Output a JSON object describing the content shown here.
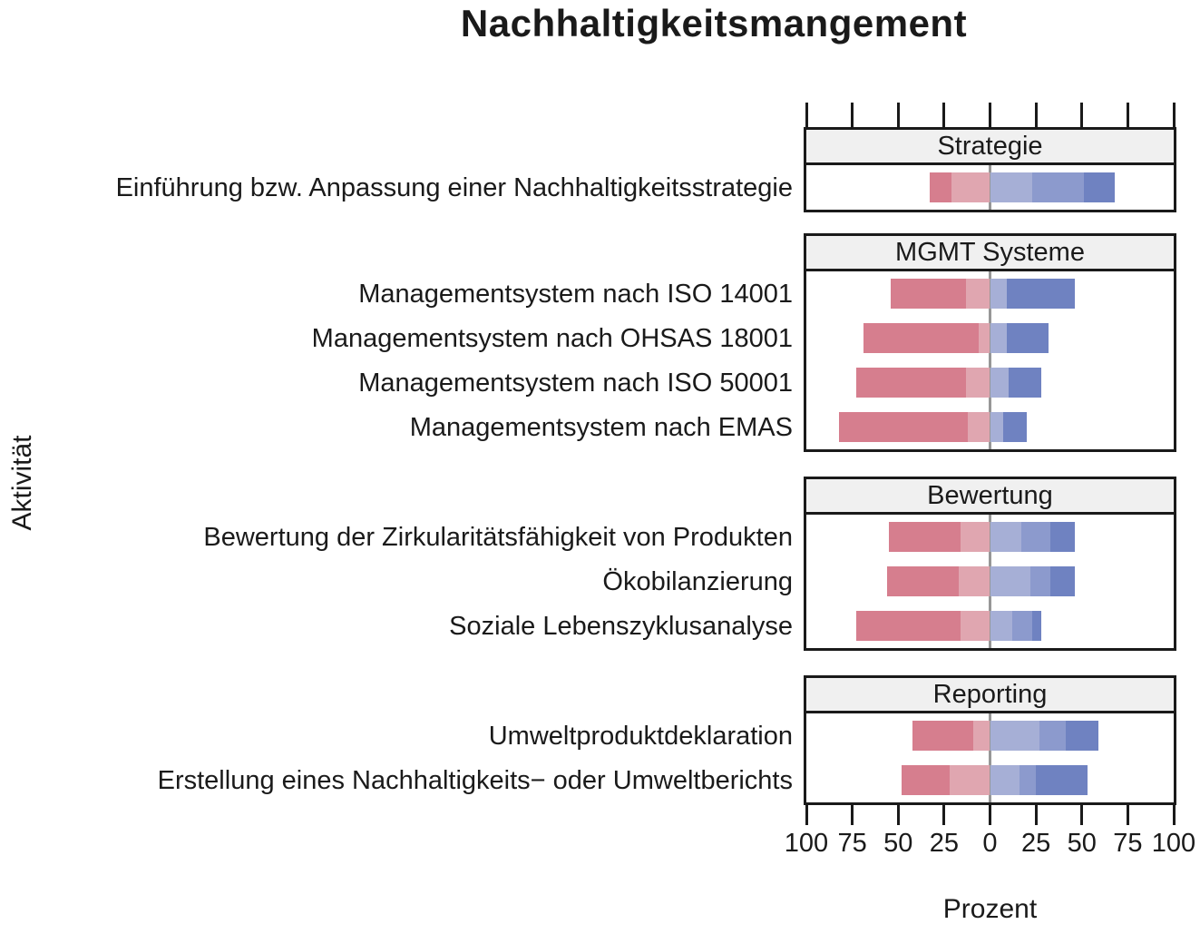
{
  "title": "Nachhaltigkeitsmangement",
  "axes": {
    "y_label": "Aktivität",
    "x_label": "Prozent",
    "x_tick_labels": [
      "100",
      "75",
      "50",
      "25",
      "0",
      "25",
      "50",
      "75",
      "100"
    ]
  },
  "colors": {
    "neg2": "#D67E8E",
    "neg1": "#E0A6B0",
    "pos1": "#A6AFD6",
    "pos2": "#8C9ACD",
    "pos3": "#6F82C1",
    "zero_line": "#979797",
    "panel_header_bg": "#F0F0F0",
    "panel_border": "#1A1A1A"
  },
  "chart_data": {
    "type": "diverging-stacked-bar",
    "unit": "percent",
    "x_range": [
      -100,
      100
    ],
    "x_ticks": [
      -100,
      -75,
      -50,
      -25,
      0,
      25,
      50,
      75,
      100
    ],
    "xlabel": "Prozent",
    "ylabel": "Aktivität",
    "series_order": [
      "neg2",
      "neg1",
      "pos1",
      "pos2",
      "pos3"
    ],
    "legend": "none",
    "panels": [
      {
        "title": "Strategie",
        "rows": [
          {
            "label": "Einführung bzw. Anpassung einer Nachhaltigkeitsstrategie",
            "values": {
              "neg2": 12,
              "neg1": 21,
              "pos1": 23,
              "pos2": 28,
              "pos3": 17
            }
          }
        ]
      },
      {
        "title": "MGMT Systeme",
        "rows": [
          {
            "label": "Managementsystem nach ISO 14001",
            "values": {
              "neg2": 41,
              "neg1": 13,
              "pos1": 9,
              "pos2": 0,
              "pos3": 37
            }
          },
          {
            "label": "Managementsystem nach OHSAS 18001",
            "values": {
              "neg2": 63,
              "neg1": 6,
              "pos1": 9,
              "pos2": 0,
              "pos3": 23
            }
          },
          {
            "label": "Managementsystem nach ISO 50001",
            "values": {
              "neg2": 60,
              "neg1": 13,
              "pos1": 10,
              "pos2": 0,
              "pos3": 18
            }
          },
          {
            "label": "Managementsystem nach EMAS",
            "values": {
              "neg2": 70,
              "neg1": 12,
              "pos1": 7,
              "pos2": 0,
              "pos3": 13
            }
          }
        ]
      },
      {
        "title": "Bewertung",
        "rows": [
          {
            "label": "Bewertung der Zirkularitätsfähigkeit von Produkten",
            "values": {
              "neg2": 39,
              "neg1": 16,
              "pos1": 17,
              "pos2": 16,
              "pos3": 13
            }
          },
          {
            "label": "Ökobilanzierung",
            "values": {
              "neg2": 39,
              "neg1": 17,
              "pos1": 22,
              "pos2": 11,
              "pos3": 13
            }
          },
          {
            "label": "Soziale Lebenszyklusanalyse",
            "values": {
              "neg2": 57,
              "neg1": 16,
              "pos1": 12,
              "pos2": 11,
              "pos3": 5
            }
          }
        ]
      },
      {
        "title": "Reporting",
        "rows": [
          {
            "label": "Umweltproduktdeklaration",
            "values": {
              "neg2": 33,
              "neg1": 9,
              "pos1": 27,
              "pos2": 14,
              "pos3": 18
            }
          },
          {
            "label": "Erstellung eines Nachhaltigkeits− oder Umweltberichts",
            "values": {
              "neg2": 26,
              "neg1": 22,
              "pos1": 16,
              "pos2": 9,
              "pos3": 28
            }
          }
        ]
      }
    ]
  }
}
